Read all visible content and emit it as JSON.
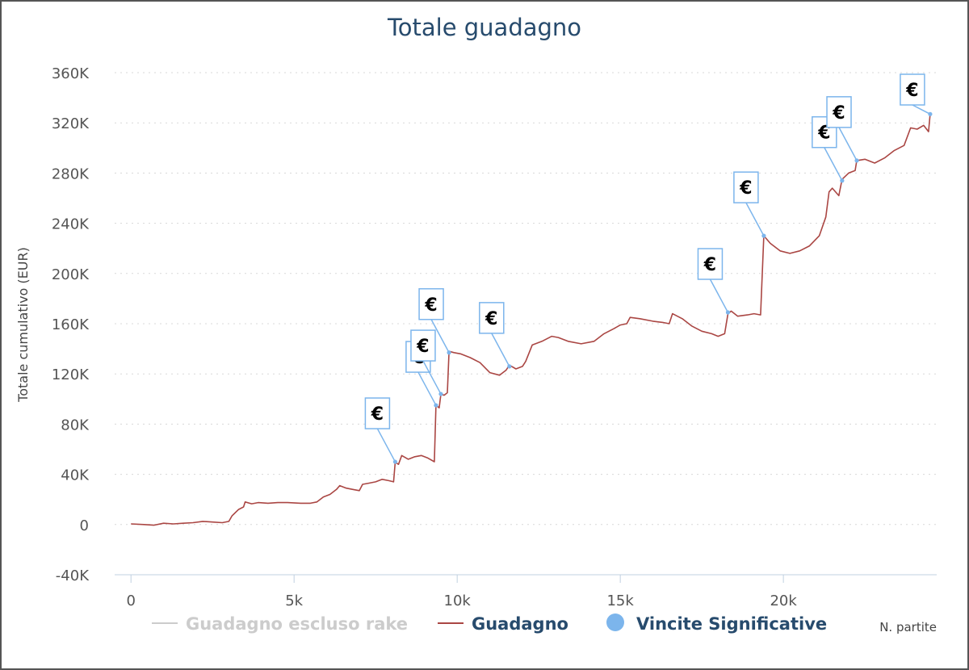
{
  "chart_data": {
    "type": "line",
    "title": "Totale guadagno",
    "ylabel": "Totale cumulativo (EUR)",
    "xlabel": "N. partite",
    "xlim": [
      -500,
      24700
    ],
    "ylim": [
      -40000,
      360000
    ],
    "x_ticks": [
      {
        "value": 0,
        "label": "0"
      },
      {
        "value": 5000,
        "label": "5k"
      },
      {
        "value": 10000,
        "label": "10k"
      },
      {
        "value": 15000,
        "label": "15k"
      },
      {
        "value": 20000,
        "label": "20k"
      }
    ],
    "y_ticks": [
      {
        "value": -40000,
        "label": "-40K"
      },
      {
        "value": 0,
        "label": "0"
      },
      {
        "value": 40000,
        "label": "40K"
      },
      {
        "value": 80000,
        "label": "80K"
      },
      {
        "value": 120000,
        "label": "120K"
      },
      {
        "value": 160000,
        "label": "160K"
      },
      {
        "value": 200000,
        "label": "200K"
      },
      {
        "value": 240000,
        "label": "240K"
      },
      {
        "value": 280000,
        "label": "280K"
      },
      {
        "value": 320000,
        "label": "320K"
      },
      {
        "value": 360000,
        "label": "360K"
      }
    ],
    "grid": true,
    "legend": "bottom",
    "legend_items": [
      {
        "name": "Guadagno escluso rake",
        "color": "#cccccc",
        "symbol": "line",
        "hidden": true
      },
      {
        "name": "Guadagno",
        "color": "#aa4643",
        "symbol": "line",
        "hidden": false
      },
      {
        "name": "Vincite Significative",
        "color": "#7cb5ec",
        "symbol": "circle",
        "hidden": false
      }
    ],
    "series": [
      {
        "name": "Guadagno",
        "color": "#aa4643",
        "points": [
          [
            0,
            500
          ],
          [
            400,
            0
          ],
          [
            700,
            -500
          ],
          [
            1000,
            1000
          ],
          [
            1300,
            500
          ],
          [
            1600,
            1000
          ],
          [
            1900,
            1500
          ],
          [
            2200,
            2500
          ],
          [
            2500,
            2000
          ],
          [
            2800,
            1500
          ],
          [
            3000,
            2500
          ],
          [
            3100,
            7000
          ],
          [
            3300,
            12000
          ],
          [
            3450,
            14000
          ],
          [
            3500,
            18000
          ],
          [
            3700,
            16500
          ],
          [
            3900,
            17500
          ],
          [
            4200,
            17000
          ],
          [
            4500,
            17500
          ],
          [
            4800,
            17500
          ],
          [
            5200,
            17000
          ],
          [
            5500,
            17000
          ],
          [
            5700,
            18000
          ],
          [
            5900,
            22000
          ],
          [
            6100,
            24000
          ],
          [
            6300,
            28000
          ],
          [
            6400,
            31000
          ],
          [
            6600,
            29000
          ],
          [
            6800,
            28000
          ],
          [
            7000,
            27000
          ],
          [
            7100,
            32000
          ],
          [
            7300,
            33000
          ],
          [
            7500,
            34000
          ],
          [
            7700,
            36000
          ],
          [
            7900,
            35000
          ],
          [
            8050,
            34000
          ],
          [
            8100,
            49500
          ],
          [
            8200,
            48000
          ],
          [
            8300,
            55000
          ],
          [
            8500,
            52000
          ],
          [
            8700,
            54000
          ],
          [
            8900,
            55000
          ],
          [
            9100,
            53000
          ],
          [
            9300,
            50000
          ],
          [
            9350,
            95000
          ],
          [
            9450,
            93000
          ],
          [
            9500,
            104000
          ],
          [
            9600,
            103000
          ],
          [
            9700,
            105000
          ],
          [
            9750,
            138000
          ],
          [
            9900,
            137000
          ],
          [
            10100,
            136000
          ],
          [
            10400,
            133000
          ],
          [
            10700,
            129000
          ],
          [
            11000,
            121000
          ],
          [
            11300,
            119000
          ],
          [
            11500,
            123000
          ],
          [
            11600,
            127000
          ],
          [
            11800,
            124000
          ],
          [
            12000,
            126000
          ],
          [
            12100,
            130000
          ],
          [
            12300,
            143000
          ],
          [
            12600,
            146000
          ],
          [
            12900,
            150000
          ],
          [
            13100,
            149000
          ],
          [
            13400,
            146000
          ],
          [
            13800,
            144000
          ],
          [
            14200,
            146000
          ],
          [
            14500,
            152000
          ],
          [
            14800,
            156000
          ],
          [
            15000,
            159000
          ],
          [
            15200,
            160000
          ],
          [
            15300,
            165000
          ],
          [
            15600,
            164000
          ],
          [
            16000,
            162000
          ],
          [
            16300,
            161000
          ],
          [
            16500,
            160000
          ],
          [
            16600,
            168000
          ],
          [
            16900,
            164000
          ],
          [
            17200,
            158000
          ],
          [
            17500,
            154000
          ],
          [
            17800,
            152000
          ],
          [
            18000,
            150000
          ],
          [
            18200,
            152000
          ],
          [
            18300,
            168000
          ],
          [
            18400,
            170000
          ],
          [
            18600,
            166000
          ],
          [
            18900,
            167000
          ],
          [
            19100,
            168000
          ],
          [
            19300,
            167000
          ],
          [
            19400,
            230000
          ],
          [
            19600,
            224000
          ],
          [
            19900,
            218000
          ],
          [
            20200,
            216000
          ],
          [
            20500,
            218000
          ],
          [
            20800,
            222000
          ],
          [
            21100,
            230000
          ],
          [
            21300,
            245000
          ],
          [
            21400,
            265000
          ],
          [
            21500,
            268000
          ],
          [
            21700,
            262000
          ],
          [
            21800,
            275000
          ],
          [
            22000,
            280000
          ],
          [
            22200,
            282000
          ],
          [
            22250,
            290000
          ],
          [
            22500,
            291000
          ],
          [
            22800,
            288000
          ],
          [
            23100,
            292000
          ],
          [
            23400,
            298000
          ],
          [
            23700,
            302000
          ],
          [
            23900,
            316000
          ],
          [
            24100,
            315000
          ],
          [
            24300,
            318000
          ],
          [
            24450,
            313000
          ],
          [
            24500,
            327000
          ]
        ]
      }
    ],
    "significant_wins": {
      "name": "Vincite Significative",
      "symbol": "€",
      "points": [
        [
          8100,
          50000
        ],
        [
          9350,
          95000
        ],
        [
          9500,
          104000
        ],
        [
          9750,
          137000
        ],
        [
          11600,
          126000
        ],
        [
          18300,
          169000
        ],
        [
          19400,
          230000
        ],
        [
          21800,
          274000
        ],
        [
          22250,
          290000
        ],
        [
          24500,
          327000
        ]
      ]
    }
  }
}
